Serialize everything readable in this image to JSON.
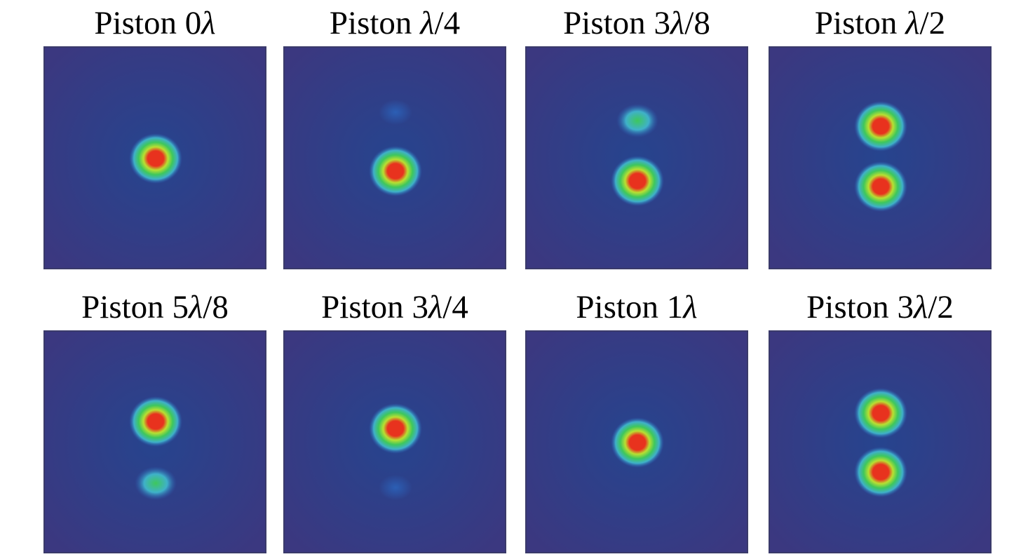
{
  "colormap": {
    "background_outer": "#3b3880",
    "background_inner": "#26448e",
    "levels": [
      "#2c5fb5",
      "#3fb1c9",
      "#3ec75c",
      "#b8e032",
      "#e8321e"
    ]
  },
  "panels": [
    {
      "label_word": "Piston",
      "label_prefix": "0",
      "label_symbol": "λ",
      "label_suffix": "",
      "spots": [
        {
          "position": "center",
          "strength": "strong"
        }
      ]
    },
    {
      "label_word": "Piston",
      "label_prefix": "",
      "label_symbol": "λ",
      "label_suffix": "/4",
      "spots": [
        {
          "position": "upper",
          "strength": "faint"
        },
        {
          "position": "center",
          "strength": "strong"
        }
      ]
    },
    {
      "label_word": "Piston",
      "label_prefix": "3",
      "label_symbol": "λ",
      "label_suffix": "/8",
      "spots": [
        {
          "position": "upper",
          "strength": "weak"
        },
        {
          "position": "lower",
          "strength": "strong"
        }
      ]
    },
    {
      "label_word": "Piston",
      "label_prefix": "",
      "label_symbol": "λ",
      "label_suffix": "/2",
      "spots": [
        {
          "position": "upper",
          "strength": "strong"
        },
        {
          "position": "lower",
          "strength": "strong"
        }
      ]
    },
    {
      "label_word": "Piston",
      "label_prefix": "5",
      "label_symbol": "λ",
      "label_suffix": "/8",
      "spots": [
        {
          "position": "upper",
          "strength": "strong"
        },
        {
          "position": "lower",
          "strength": "weak"
        }
      ]
    },
    {
      "label_word": "Piston",
      "label_prefix": "3",
      "label_symbol": "λ",
      "label_suffix": "/4",
      "spots": [
        {
          "position": "center",
          "strength": "strong"
        },
        {
          "position": "lower",
          "strength": "faint"
        }
      ]
    },
    {
      "label_word": "Piston",
      "label_prefix": "1",
      "label_symbol": "λ",
      "label_suffix": "",
      "spots": [
        {
          "position": "center",
          "strength": "strong"
        }
      ]
    },
    {
      "label_word": "Piston",
      "label_prefix": "3",
      "label_symbol": "λ",
      "label_suffix": "/2",
      "spots": [
        {
          "position": "upper",
          "strength": "strong"
        },
        {
          "position": "lower",
          "strength": "strong"
        }
      ]
    }
  ]
}
